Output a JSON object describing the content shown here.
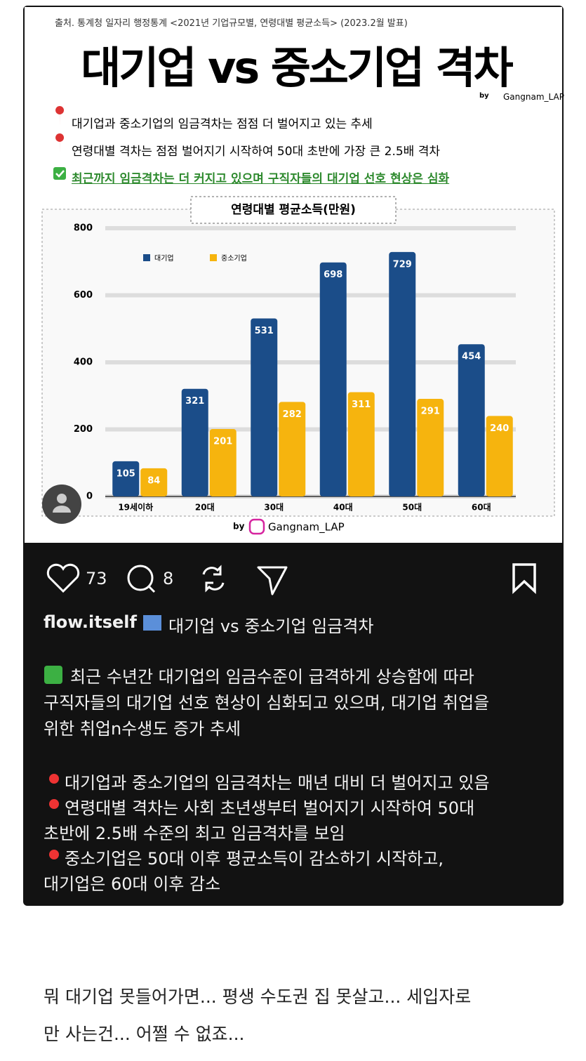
{
  "post": {
    "image": {
      "source": "출처. 통계청 일자리 행정통계 <2021년 기업규모별, 연령대별 평균소득> (2023.2월 발표)",
      "headline": "대기업 vs 중소기업 격차",
      "by": "by",
      "credit": "Gangnam_LAP",
      "bullets": [
        "대기업과 중소기업의 임금격차는 점점 더 벌어지고 있는 추세",
        "연령대별 격차는 점점 벌어지기 시작하여 50대 초반에 가장 큰 2.5배 격차",
        "최근까지 임금격차는 더 커지고 있으며 구직자들의 대기업 선호 현상은 심화"
      ],
      "chart": {
        "type": "bar",
        "title": "연령대별 평균소득(만원)",
        "categories": [
          "19세이하",
          "20대",
          "30대",
          "40대",
          "50대",
          "60대"
        ],
        "series": [
          {
            "name": "대기업",
            "color": "#1b4d89",
            "values": [
              105,
              321,
              531,
              698,
              729,
              454
            ]
          },
          {
            "name": "중소기업",
            "color": "#f6b40e",
            "values": [
              84,
              201,
              282,
              311,
              291,
              240
            ]
          }
        ],
        "ylim": [
          0,
          800
        ],
        "yticks": [
          0,
          200,
          400,
          600,
          800
        ],
        "grid": true
      },
      "footer_by": "by",
      "footer_credit": "Gangnam_LAP"
    },
    "actions": {
      "likes": 73,
      "comments": 8
    },
    "caption": {
      "username": "flow.itself",
      "title": "대기업 vs 중소기업 임금격차",
      "paragraph1": [
        "최근 수년간 대기업의 임금수준이 급격하게 상승함에 따라",
        "구직자들의 대기업 선호 현상이 심화되고 있으며, 대기업 취업을",
        "위한 취업n수생도 증가 추세"
      ],
      "paragraph2": [
        "대기업과 중소기업의 임금격차는 매년 대비 더 벌어지고 있음",
        "연령대별 격차는 사회 초년생부터 벌어지기 시작하여 50대",
        "초반에 2.5배 수준의 최고 임금격차를 보임",
        "중소기업은 50대 이후 평균소득이 감소하기 시작하고,",
        "대기업은 60대 이후 감소"
      ]
    }
  },
  "comment": [
    "뭐 대기업 못들어가면... 평생 수도권 집 못살고... 세입자로",
    "만 사는건... 어쩔 수 없죠..."
  ]
}
